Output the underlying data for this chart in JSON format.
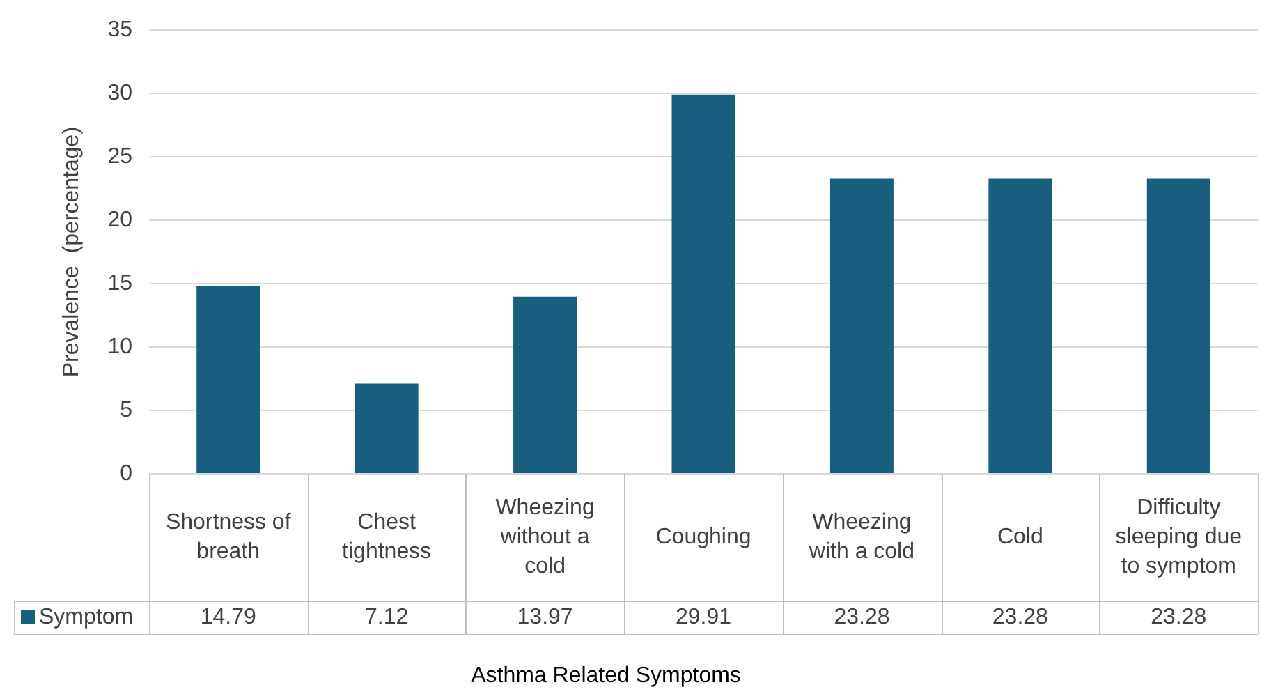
{
  "chart_data": {
    "type": "bar",
    "xlabel": "Asthma Related Symptoms",
    "ylabel": "Prevalence  (percentage)",
    "categories": [
      "Shortness of breath",
      "Chest tightness",
      "Wheezing without a cold",
      "Coughing",
      "Wheezing with a cold",
      "Cold",
      "Difficulty sleeping due to symptom"
    ],
    "series": [
      {
        "name": "Symptom",
        "color": "#175e7f",
        "values": [
          14.79,
          7.12,
          13.97,
          29.91,
          23.28,
          23.28,
          23.28
        ]
      }
    ],
    "ylim": [
      0,
      35
    ],
    "yticks": [
      0,
      5,
      10,
      15,
      20,
      25,
      30,
      35
    ],
    "grid": "y",
    "legend": "bottom",
    "data_labels": true
  }
}
